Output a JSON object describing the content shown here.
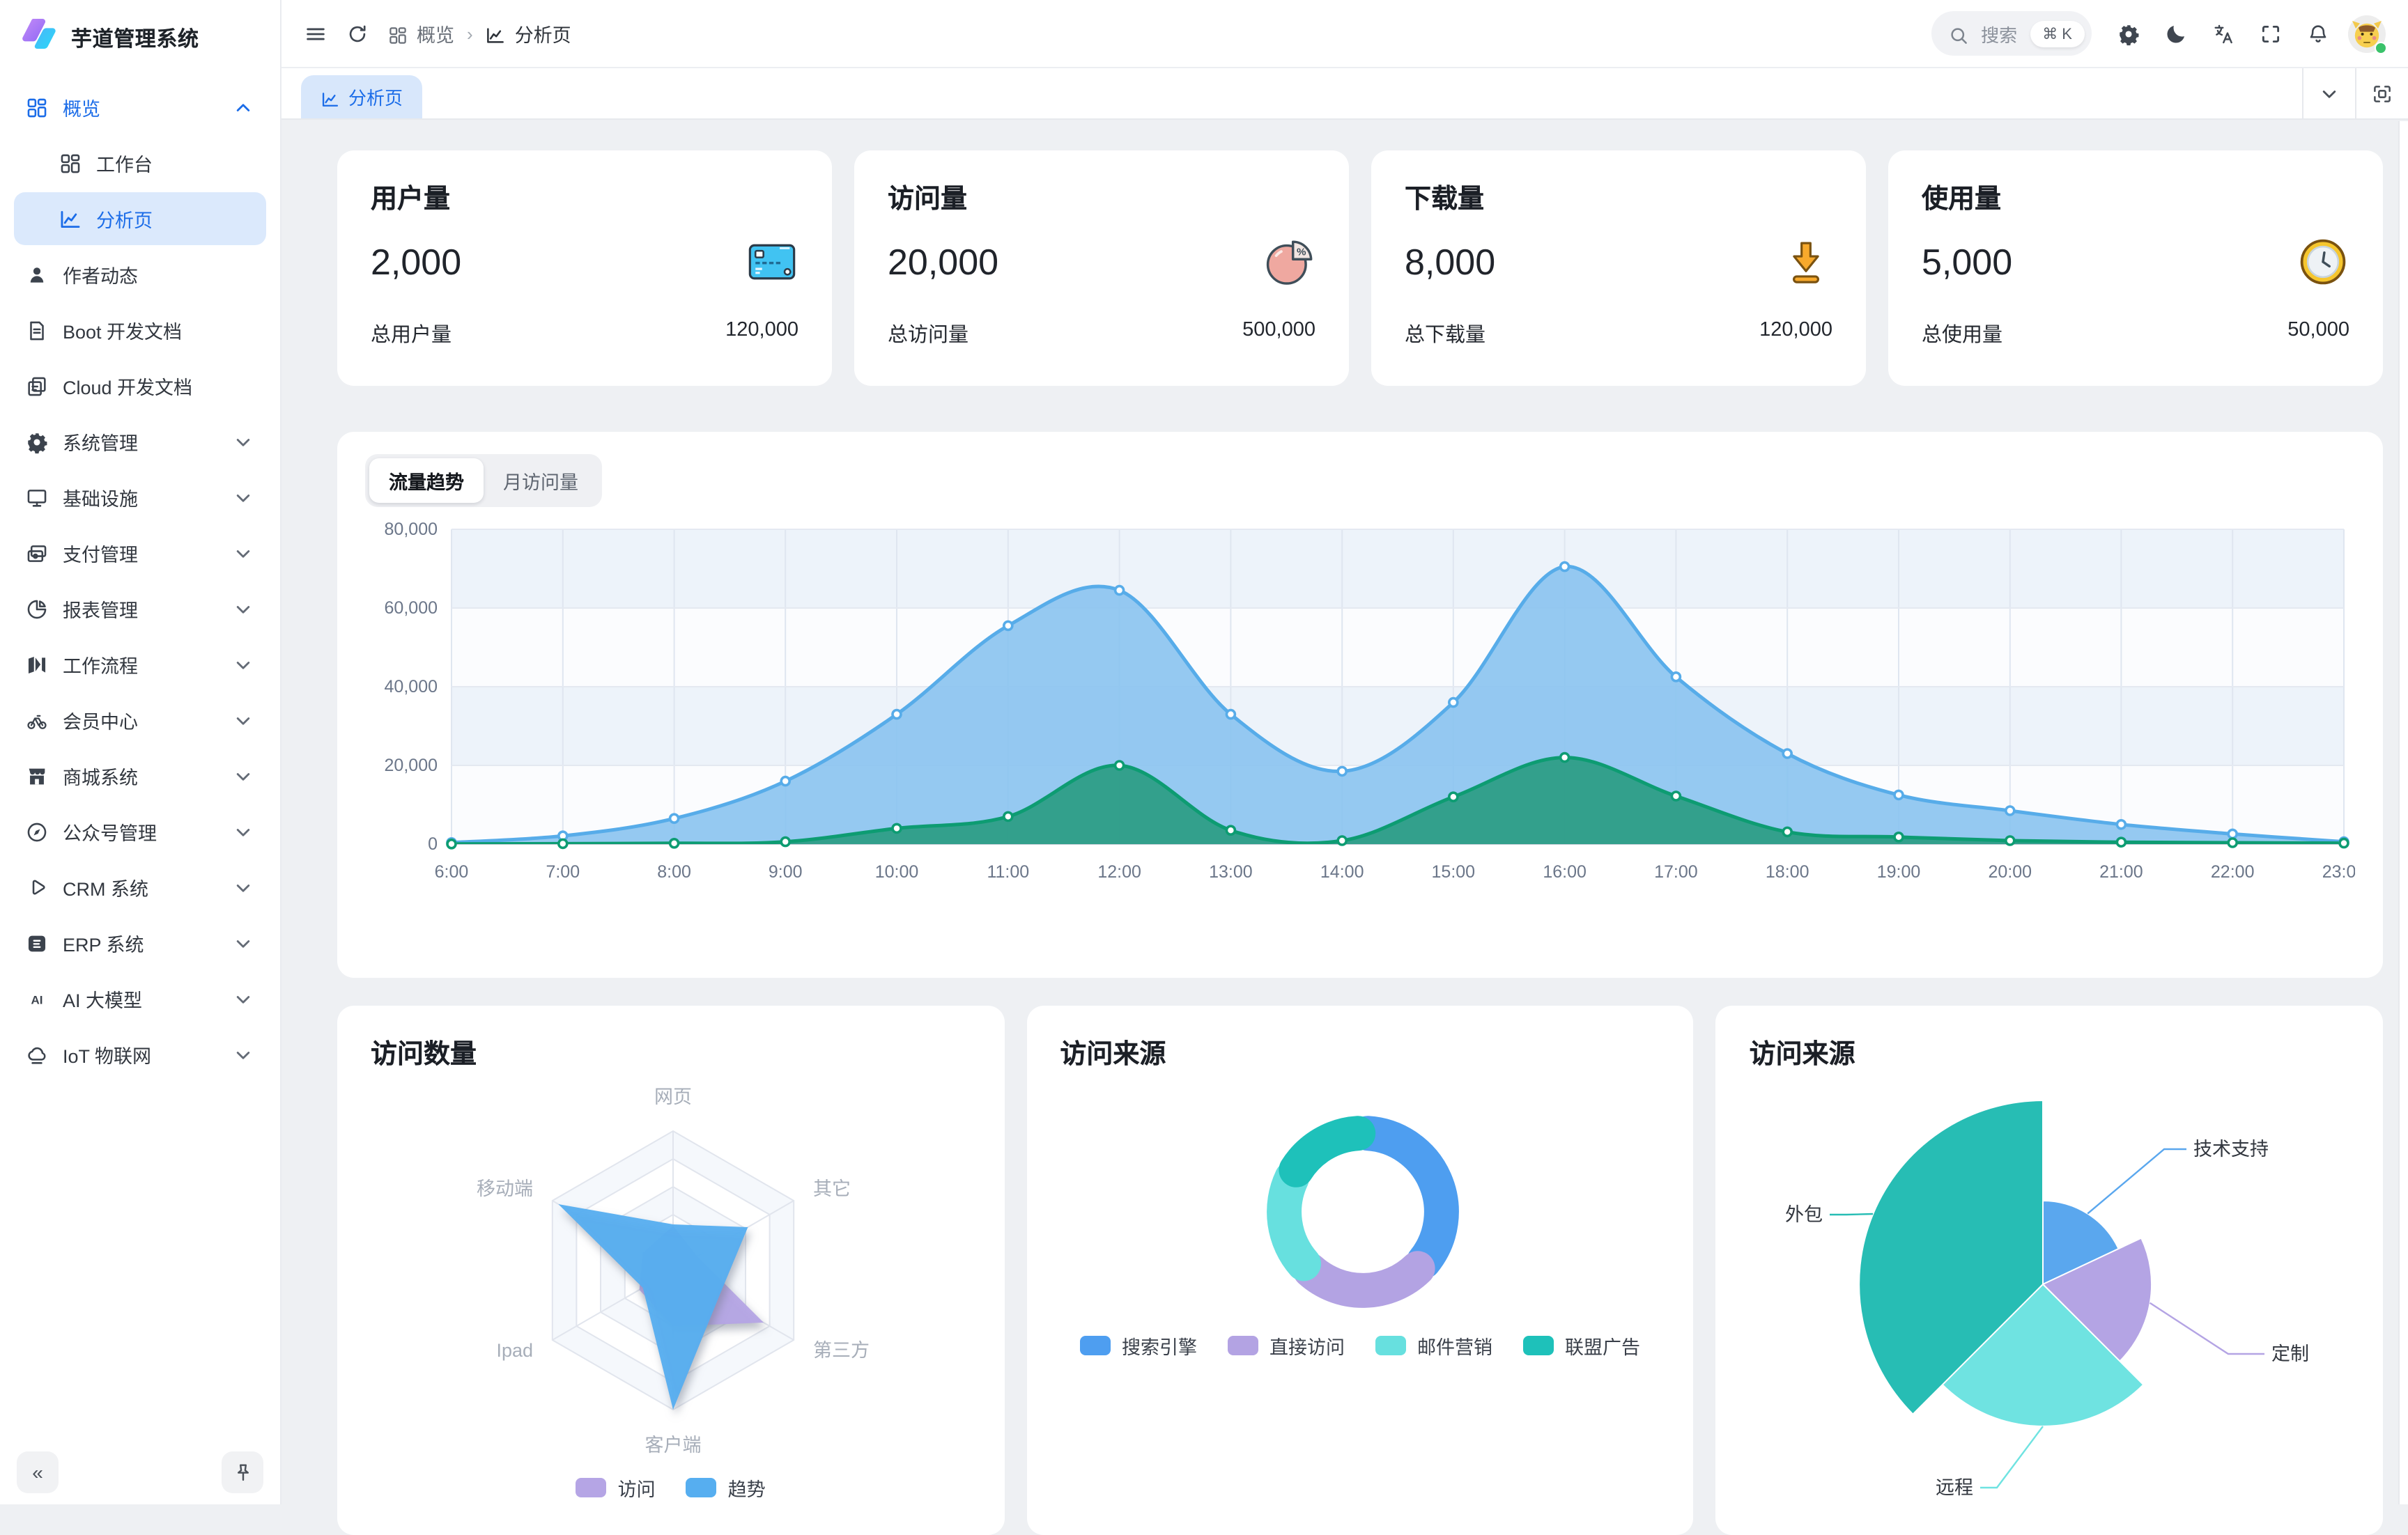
{
  "app": {
    "title": "芋道管理系统"
  },
  "header": {
    "breadcrumb": [
      {
        "icon": "grid",
        "label": "概览"
      },
      {
        "icon": "chart",
        "label": "分析页"
      }
    ],
    "search": {
      "placeholder": "搜索",
      "kbd": "⌘ K"
    },
    "actions": [
      {
        "icon": "settings",
        "name": "settings"
      },
      {
        "icon": "moon",
        "name": "theme-toggle"
      },
      {
        "icon": "lang",
        "name": "language"
      },
      {
        "icon": "fullscreen",
        "name": "fullscreen"
      },
      {
        "icon": "bell",
        "name": "notifications"
      }
    ],
    "user": {
      "status_color": "#3ac26a"
    }
  },
  "tabbar": {
    "tabs": [
      {
        "label": "分析页",
        "icon": "chart",
        "active": true
      }
    ]
  },
  "sidebar": {
    "items": [
      {
        "label": "概览",
        "icon": "grid",
        "level": 0,
        "chevron": "up",
        "active": true
      },
      {
        "label": "工作台",
        "icon": "workbench",
        "level": 1
      },
      {
        "label": "分析页",
        "icon": "chart",
        "level": 1,
        "selected": true
      },
      {
        "label": "作者动态",
        "icon": "user",
        "level": 0
      },
      {
        "label": "Boot 开发文档",
        "icon": "doc",
        "level": 0
      },
      {
        "label": "Cloud 开发文档",
        "icon": "docs",
        "level": 0
      },
      {
        "label": "系统管理",
        "icon": "gear",
        "level": 0,
        "chevron": "down"
      },
      {
        "label": "基础设施",
        "icon": "monitor",
        "level": 0,
        "chevron": "down"
      },
      {
        "label": "支付管理",
        "icon": "payment",
        "level": 0,
        "chevron": "down"
      },
      {
        "label": "报表管理",
        "icon": "pie",
        "level": 0,
        "chevron": "down"
      },
      {
        "label": "工作流程",
        "icon": "flow",
        "level": 0,
        "chevron": "down"
      },
      {
        "label": "会员中心",
        "icon": "bike",
        "level": 0,
        "chevron": "down"
      },
      {
        "label": "商城系统",
        "icon": "shop",
        "level": 0,
        "chevron": "down"
      },
      {
        "label": "公众号管理",
        "icon": "compass",
        "level": 0,
        "chevron": "down"
      },
      {
        "label": "CRM 系统",
        "icon": "crm",
        "level": 0,
        "chevron": "down"
      },
      {
        "label": "ERP 系统",
        "icon": "erp",
        "level": 0,
        "chevron": "down"
      },
      {
        "label": "AI 大模型",
        "icon": "ai",
        "level": 0,
        "chevron": "down"
      },
      {
        "label": "IoT 物联网",
        "icon": "iot",
        "level": 0,
        "chevron": "down"
      }
    ],
    "collapse": "«"
  },
  "stats": [
    {
      "title": "用户量",
      "value": "2,000",
      "icon": "credit-card",
      "total_label": "总用户量",
      "total": "120,000"
    },
    {
      "title": "访问量",
      "value": "20,000",
      "icon": "pie-percent",
      "total_label": "总访问量",
      "total": "500,000"
    },
    {
      "title": "下载量",
      "value": "8,000",
      "icon": "download",
      "total_label": "总下载量",
      "total": "120,000"
    },
    {
      "title": "使用量",
      "value": "5,000",
      "icon": "clock",
      "total_label": "总使用量",
      "total": "50,000"
    }
  ],
  "chart_data": [
    {
      "type": "area",
      "tabs": [
        "流量趋势",
        "月访问量"
      ],
      "active_tab": "流量趋势",
      "x": [
        "6:00",
        "7:00",
        "8:00",
        "9:00",
        "10:00",
        "11:00",
        "12:00",
        "13:00",
        "14:00",
        "15:00",
        "16:00",
        "17:00",
        "18:00",
        "19:00",
        "20:00",
        "21:00",
        "22:00",
        "23:00"
      ],
      "ylim": [
        0,
        80000
      ],
      "yticks": [
        0,
        20000,
        40000,
        60000,
        80000
      ],
      "grid": true,
      "series": [
        {
          "name": "trend-main",
          "color": "#57ace9",
          "fill": "#8ac3f0",
          "opacity": 0.9,
          "values": [
            400,
            2100,
            6500,
            16000,
            33000,
            55500,
            64500,
            33000,
            18500,
            36000,
            70500,
            42500,
            23000,
            12500,
            8500,
            5000,
            2600,
            600
          ]
        },
        {
          "name": "trend-secondary",
          "color": "#0d9c72",
          "fill": "#2f9e88",
          "opacity": 0.97,
          "values": [
            50,
            100,
            200,
            600,
            4000,
            7000,
            20000,
            3500,
            900,
            12000,
            22000,
            12200,
            3100,
            1800,
            900,
            500,
            350,
            250
          ]
        }
      ]
    },
    {
      "type": "radar",
      "title": "访问数量",
      "indicators": [
        "网页",
        "其它",
        "第三方",
        "客户端",
        "Ipad",
        "移动端"
      ],
      "max": 100,
      "series": [
        {
          "name": "访问",
          "color": "#b5a5e5",
          "values": [
            32,
            20,
            75,
            40,
            28,
            25
          ]
        },
        {
          "name": "趋势",
          "color": "#56aef0",
          "values": [
            33,
            62,
            38,
            100,
            25,
            95
          ]
        }
      ],
      "legend_position": "bottom"
    },
    {
      "type": "donut",
      "title": "访问来源",
      "legend_position": "bottom",
      "items": [
        {
          "name": "搜索引擎",
          "value": 1048,
          "color": "#4e9ef0"
        },
        {
          "name": "直接访问",
          "value": 735,
          "color": "#b3a3e3"
        },
        {
          "name": "邮件营销",
          "value": 580,
          "color": "#67e0df"
        },
        {
          "name": "联盟广告",
          "value": 484,
          "color": "#1ec1ba"
        }
      ]
    },
    {
      "type": "rose",
      "title": "访问来源",
      "items": [
        {
          "name": "技术支持",
          "value": 360,
          "color": "#5aa7ee",
          "radius": 60
        },
        {
          "name": "定制",
          "value": 390,
          "color": "#b4a4e4",
          "radius": 78
        },
        {
          "name": "远程",
          "value": 500,
          "color": "#6fe3e1",
          "radius": 102
        },
        {
          "name": "外包",
          "value": 750,
          "color": "#27bdb4",
          "radius": 132
        }
      ]
    }
  ]
}
